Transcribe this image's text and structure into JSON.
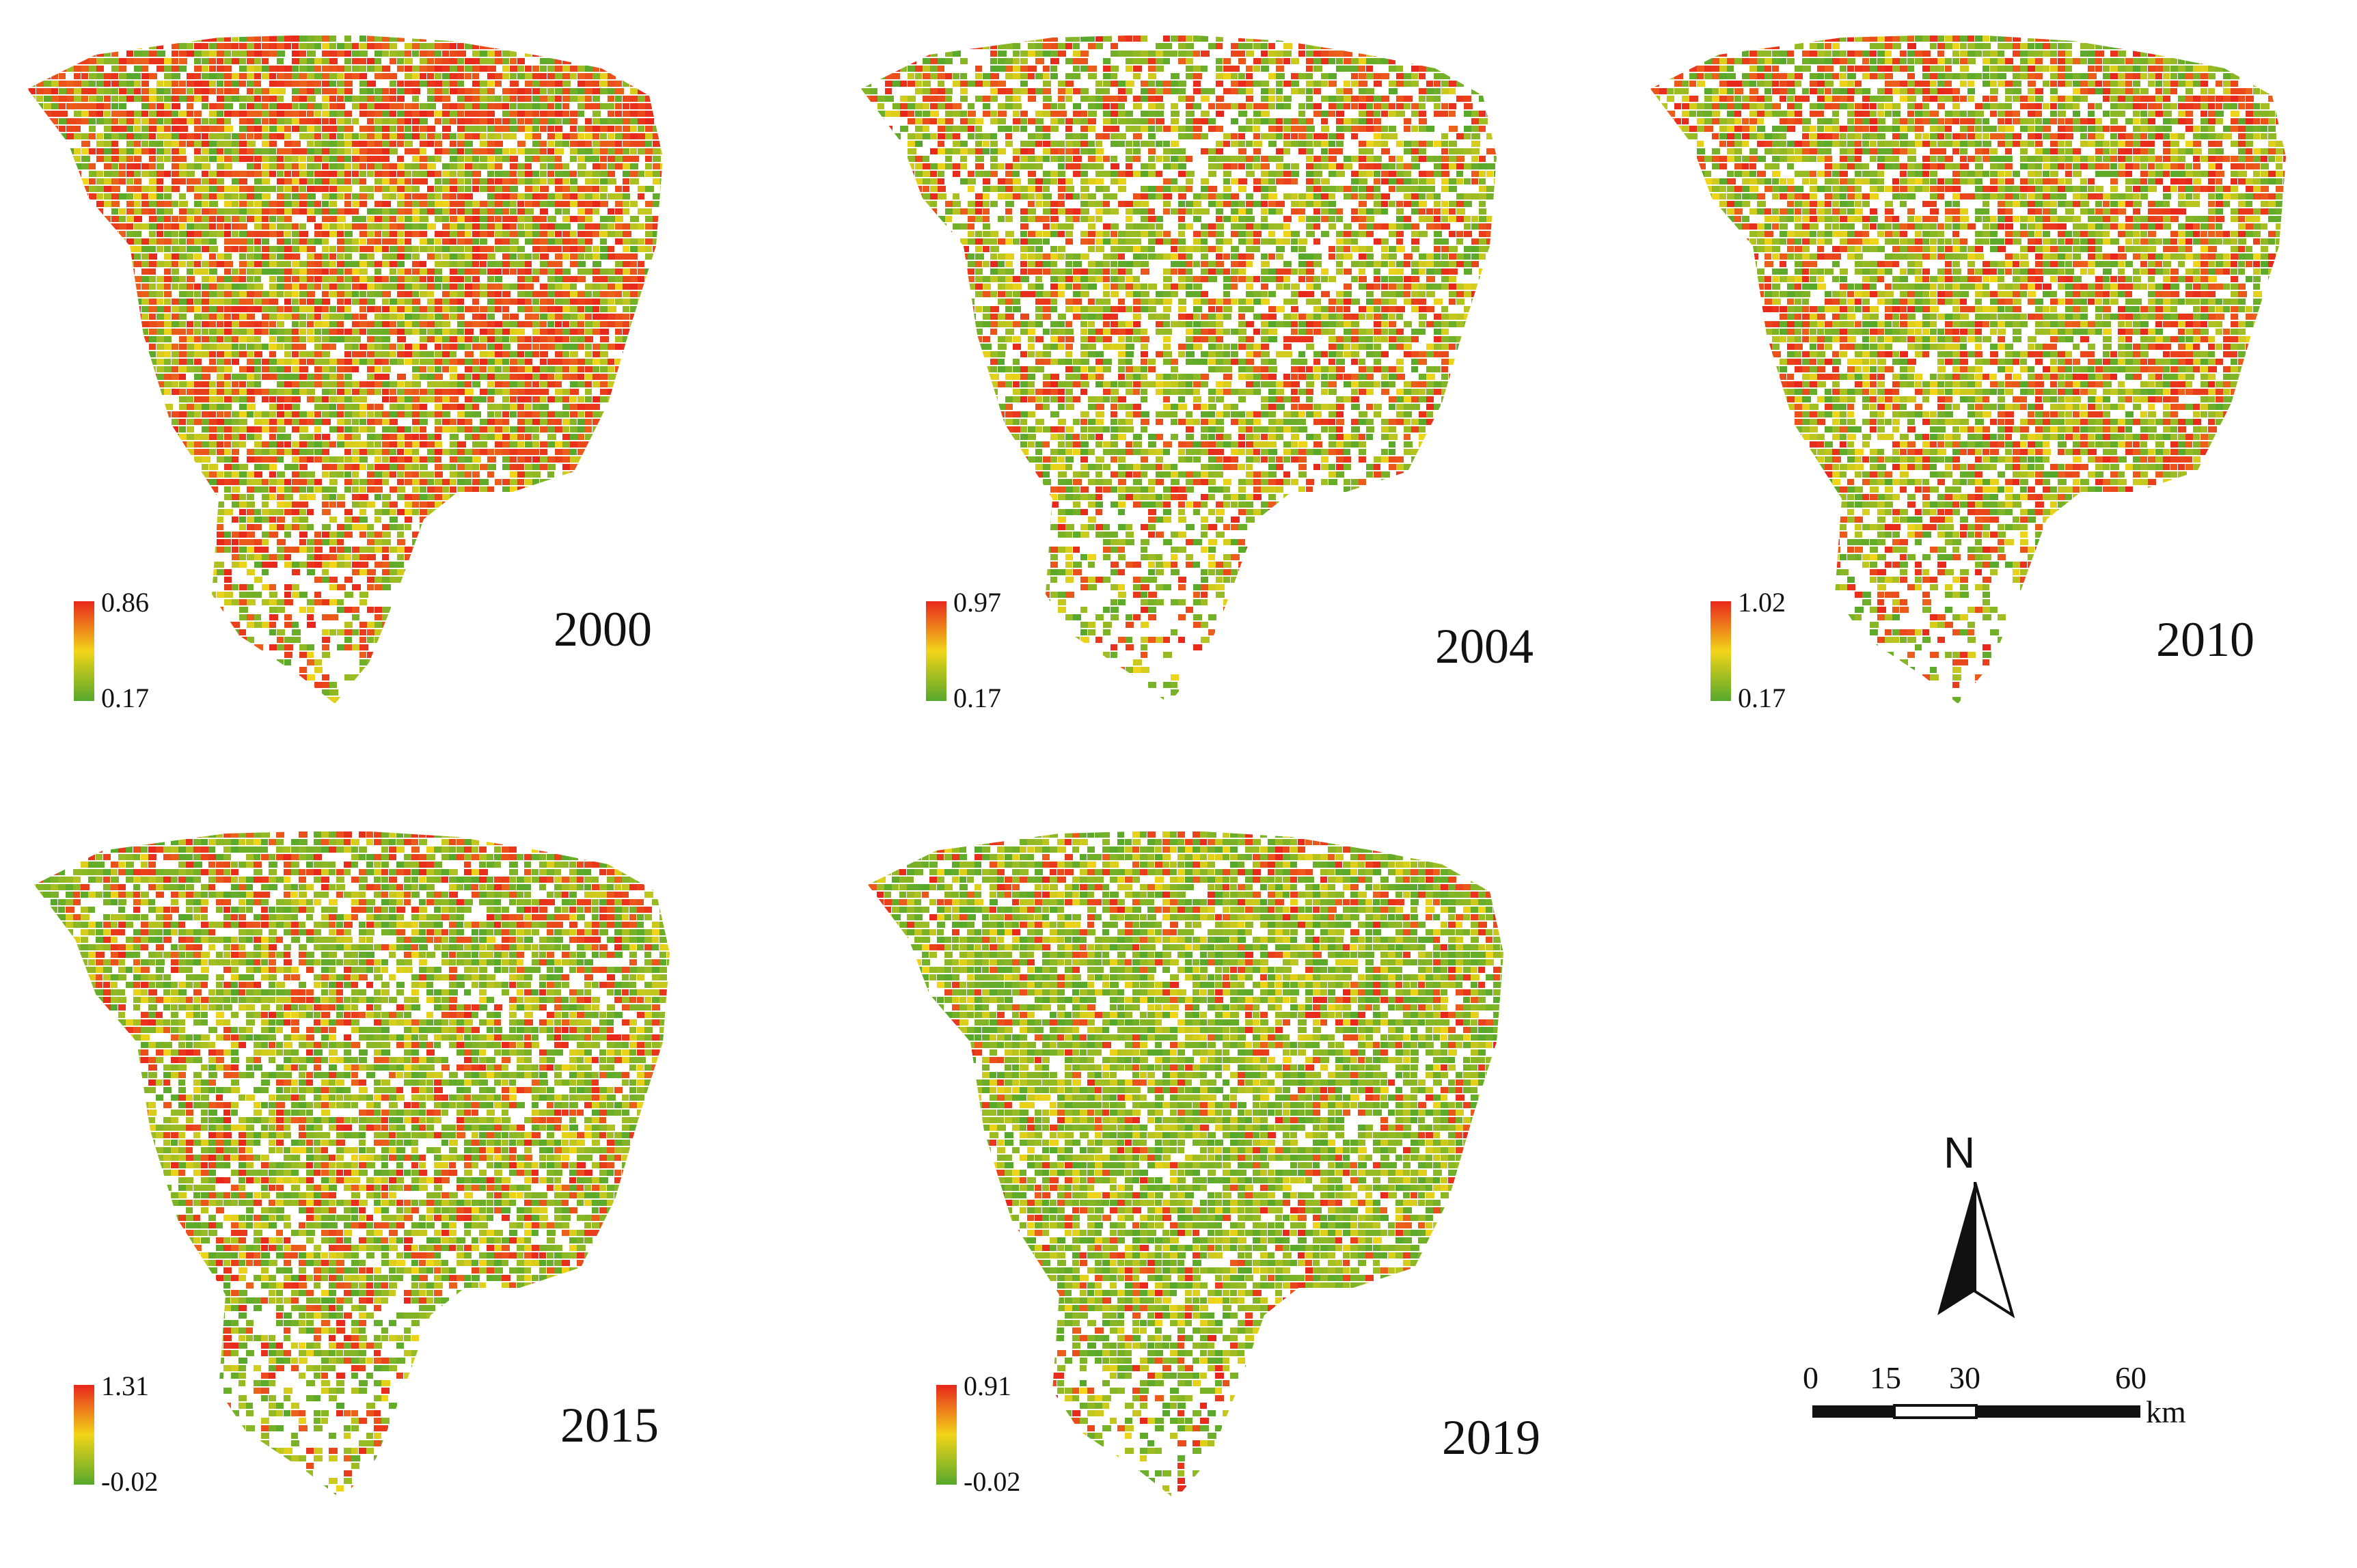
{
  "colors": {
    "high": "#e8261c",
    "mid": "#f2d519",
    "low": "#56a82b",
    "ink": "#111111"
  },
  "panels": [
    {
      "year": "2000",
      "legend": {
        "max": "0.86",
        "min": "0.17"
      },
      "red_share": 0.42,
      "coverage": 0.9
    },
    {
      "year": "2004",
      "legend": {
        "max": "0.97",
        "min": "0.17"
      },
      "red_share": 0.28,
      "coverage": 0.72
    },
    {
      "year": "2010",
      "legend": {
        "max": "1.02",
        "min": "0.17"
      },
      "red_share": 0.3,
      "coverage": 0.82
    },
    {
      "year": "2015",
      "legend": {
        "max": "1.31",
        "min": "-0.02"
      },
      "red_share": 0.24,
      "coverage": 0.8
    },
    {
      "year": "2019",
      "legend": {
        "max": "0.91",
        "min": "-0.02"
      },
      "red_share": 0.14,
      "coverage": 0.84
    }
  ],
  "north_arrow": {
    "label": "N"
  },
  "scale_bar": {
    "ticks": [
      "0",
      "15",
      "30",
      "60"
    ],
    "unit": "km"
  }
}
